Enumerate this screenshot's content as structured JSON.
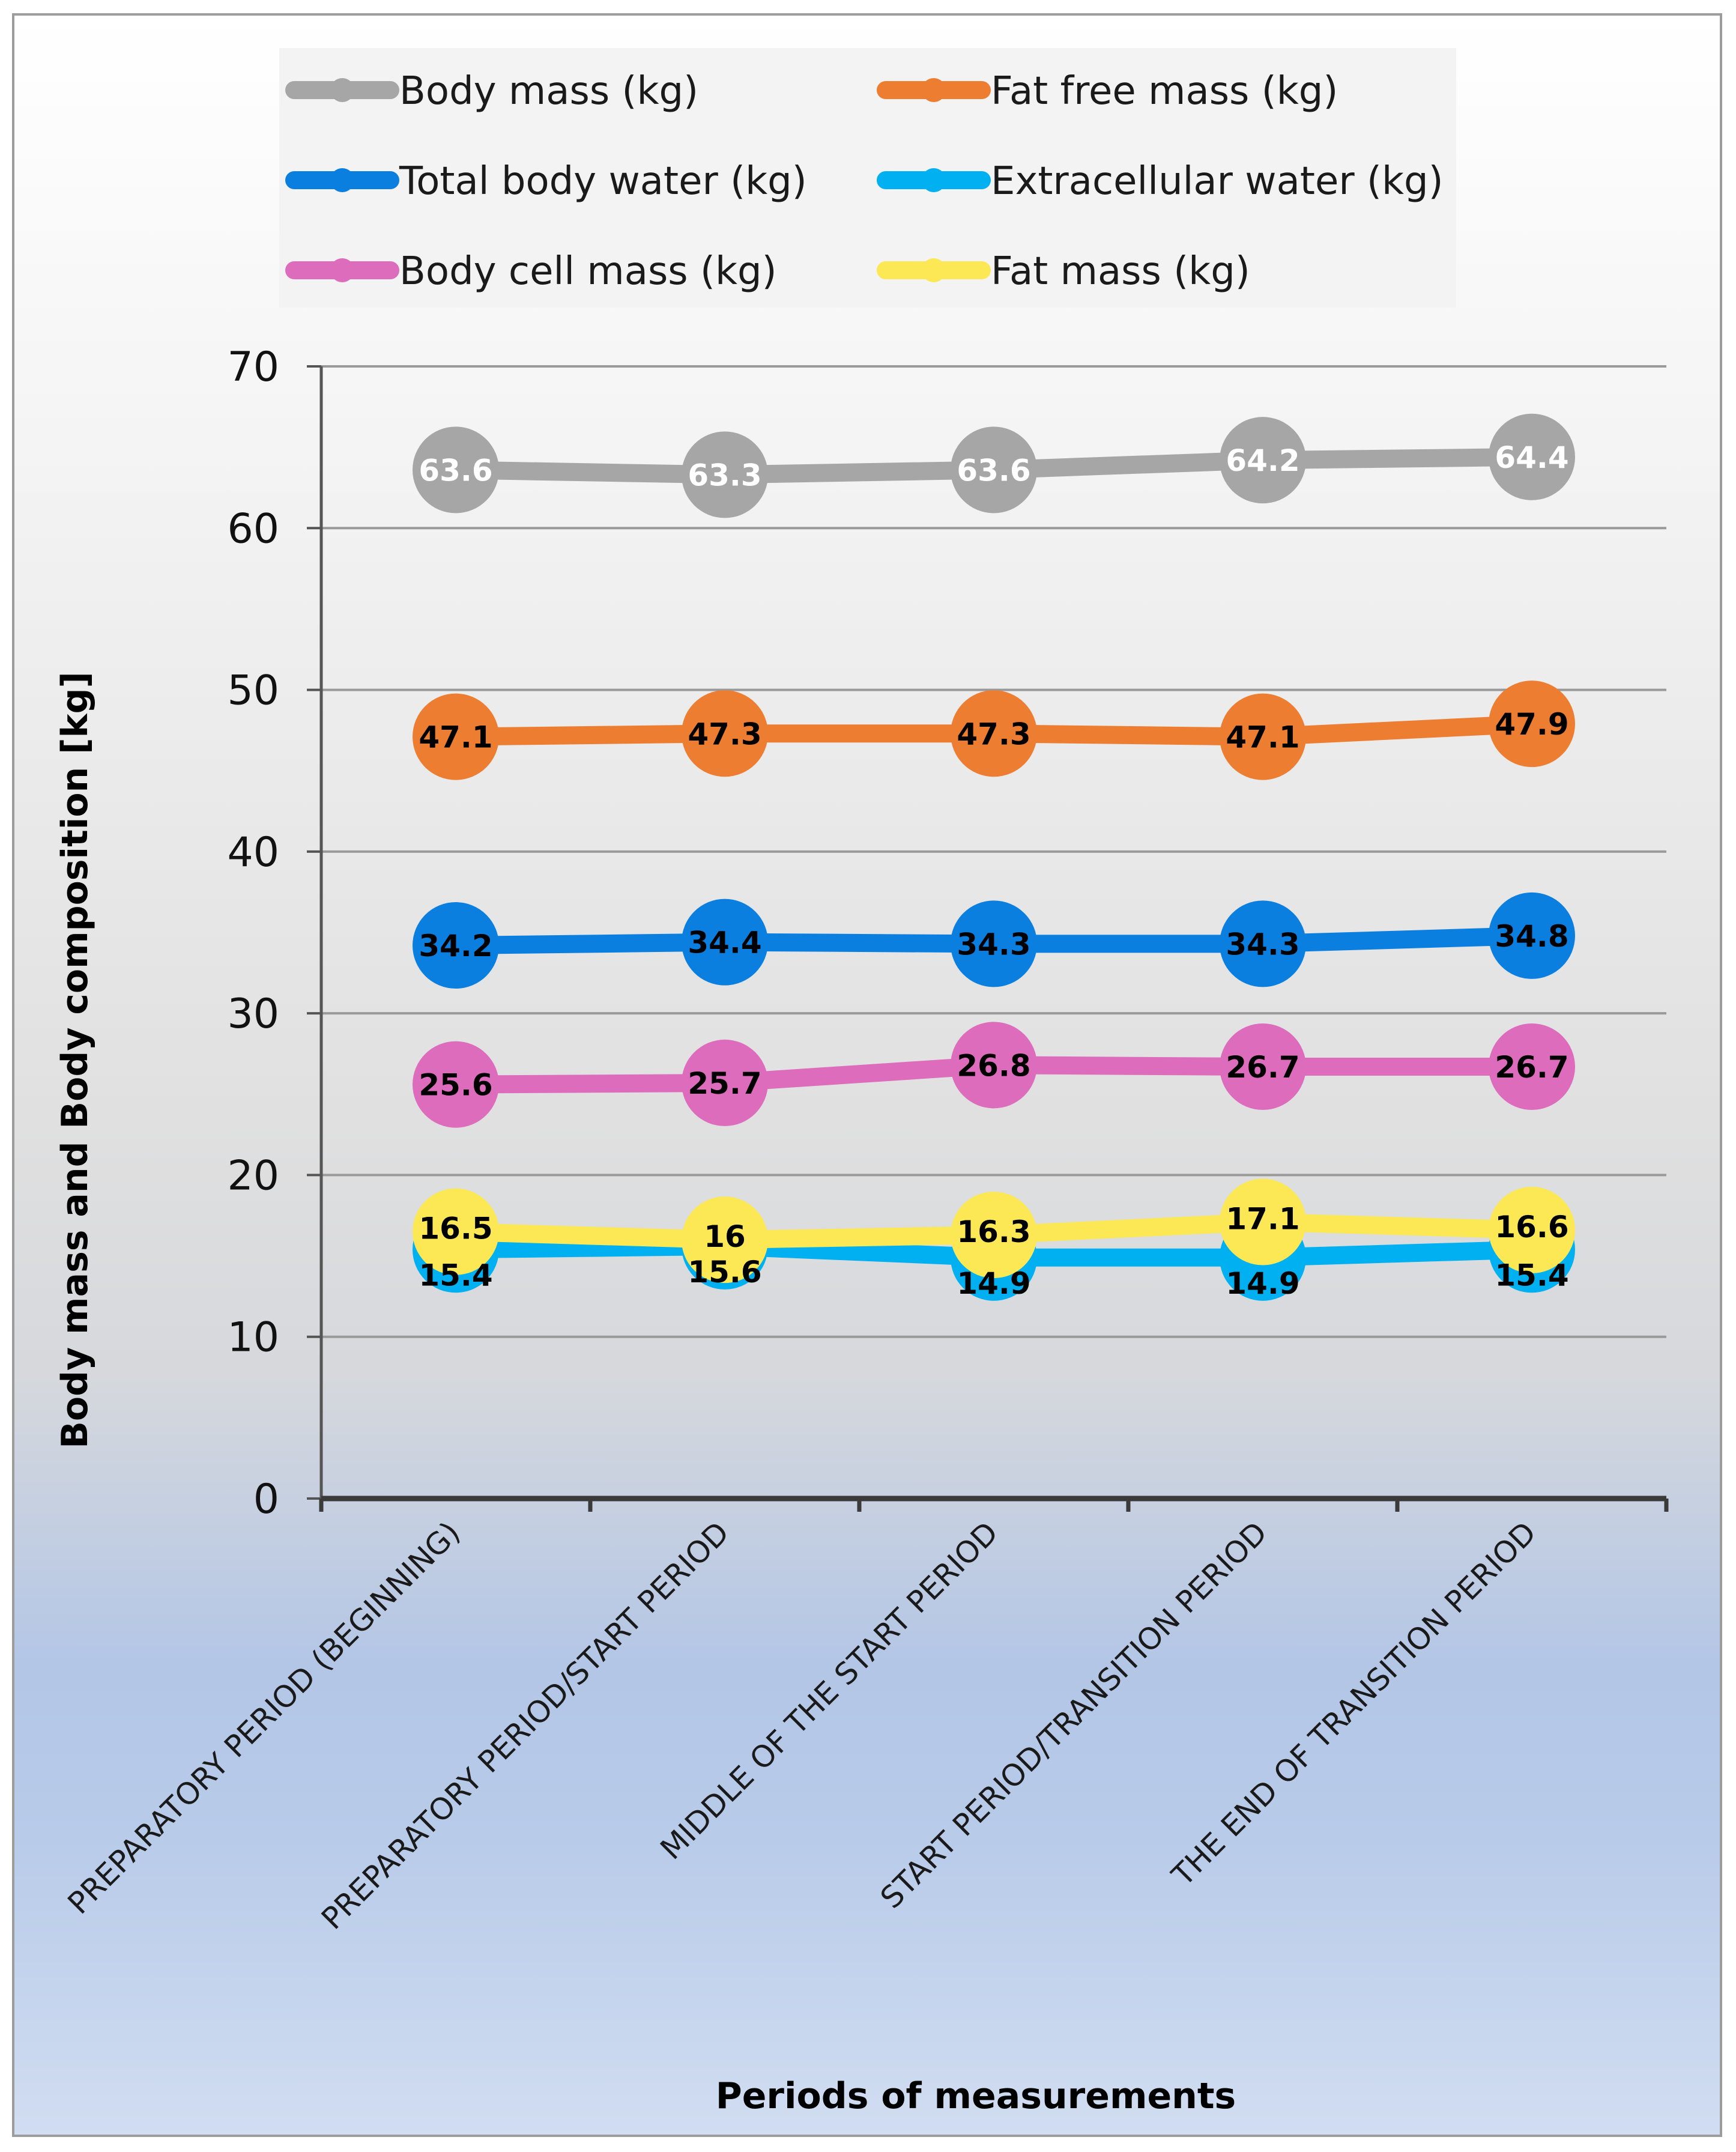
{
  "chart_data": {
    "type": "line",
    "xlabel": "Periods of measurements",
    "ylabel": "Body mass and Body composition [kg]",
    "ylim": [
      0,
      70
    ],
    "yticks": [
      0,
      10,
      20,
      30,
      40,
      50,
      60,
      70
    ],
    "grid": true,
    "legend_position": "top",
    "categories": [
      "PREPARATORY PERIOD (BEGINNING)",
      "PREPARATORY PERIOD/START PERIOD",
      "MIDDLE OF THE START PERIOD",
      "START PERIOD/TRANSITION PERIOD",
      "THE END OF TRANSITION PERIOD"
    ],
    "series": [
      {
        "name": "Body mass (kg)",
        "color": "#a6a6a6",
        "label_color": "#ffffff",
        "values": [
          63.6,
          63.3,
          63.6,
          64.2,
          64.4
        ]
      },
      {
        "name": "Fat free mass (kg)",
        "color": "#ed7d31",
        "label_color": "#000000",
        "values": [
          47.1,
          47.3,
          47.3,
          47.1,
          47.9
        ]
      },
      {
        "name": "Total body water (kg)",
        "color": "#0b7fe0",
        "label_color": "#000000",
        "values": [
          34.2,
          34.4,
          34.3,
          34.3,
          34.8
        ]
      },
      {
        "name": "Extracellular water (kg)",
        "color": "#00b0f0",
        "label_color": "#000000",
        "values": [
          15.4,
          15.6,
          14.9,
          14.9,
          15.4
        ]
      },
      {
        "name": "Body cell mass (kg)",
        "color": "#dd6cbd",
        "label_color": "#000000",
        "values": [
          25.6,
          25.7,
          26.8,
          26.7,
          26.7
        ]
      },
      {
        "name": "Fat mass (kg)",
        "color": "#fbe854",
        "label_color": "#000000",
        "values": [
          16.5,
          16,
          16.3,
          17.1,
          16.6
        ]
      }
    ]
  }
}
